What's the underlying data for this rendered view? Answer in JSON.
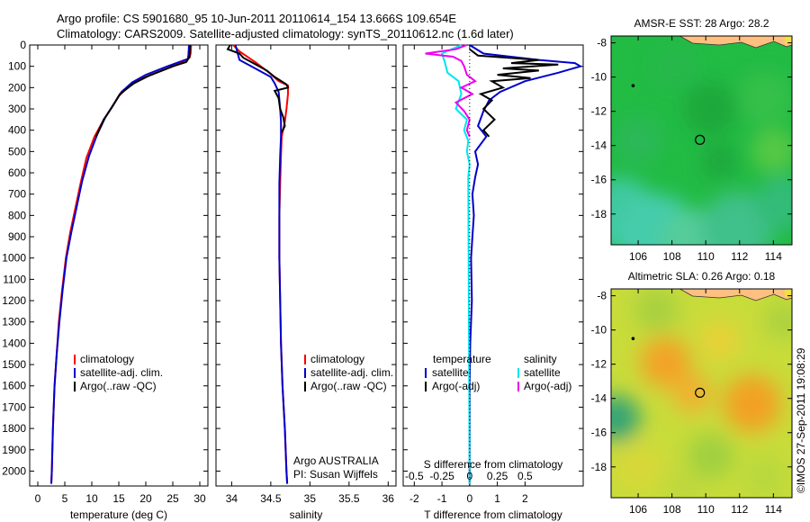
{
  "header": {
    "line1": "Argo profile: CS 5901680_95 10-Jun-2011 20110614_154 13.666S 109.654E",
    "line2": "Climatology: CARS2009. Satellite-adjusted climatology: synTS_20110612.nc (1.6d later)"
  },
  "credit": "©IMOS 27-Sep-2011 19:08:29",
  "colors": {
    "red": "#ff0000",
    "blue": "#0000cc",
    "black": "#000000",
    "cyan": "#00e5ee",
    "magenta": "#ee00ee",
    "land": "#ffbf80"
  },
  "chart_data": [
    {
      "type": "line",
      "id": "temperature",
      "xlabel": "temperature (deg C)",
      "xlim": [
        -1.5,
        31.5
      ],
      "xticks": [
        0,
        5,
        10,
        15,
        20,
        25,
        30
      ],
      "ylim": [
        0,
        2070
      ],
      "yticks": [
        0,
        100,
        200,
        300,
        400,
        500,
        600,
        700,
        800,
        900,
        1000,
        1100,
        1200,
        1300,
        1400,
        1500,
        1600,
        1700,
        1800,
        1900,
        2000
      ],
      "legend": [
        "climatology",
        "satellite-adj. clim.",
        "Argo(..raw -QC)"
      ],
      "series": [
        {
          "name": "climatology",
          "color": "red",
          "points": [
            [
              28.4,
              0
            ],
            [
              28.3,
              40
            ],
            [
              28.1,
              60
            ],
            [
              26,
              90
            ],
            [
              22,
              130
            ],
            [
              19,
              160
            ],
            [
              17,
              190
            ],
            [
              15,
              240
            ],
            [
              13.5,
              300
            ],
            [
              12,
              360
            ],
            [
              10.5,
              430
            ],
            [
              9,
              530
            ],
            [
              8,
              640
            ],
            [
              7,
              760
            ],
            [
              6,
              880
            ],
            [
              5.2,
              1000
            ],
            [
              4.5,
              1150
            ],
            [
              3.9,
              1300
            ],
            [
              3.5,
              1450
            ],
            [
              3.1,
              1600
            ],
            [
              2.8,
              1800
            ],
            [
              2.6,
              2000
            ],
            [
              2.5,
              2060
            ]
          ]
        },
        {
          "name": "satellite-adj. clim.",
          "color": "blue",
          "points": [
            [
              28,
              0
            ],
            [
              27.9,
              45
            ],
            [
              27.8,
              65
            ],
            [
              24,
              100
            ],
            [
              20,
              140
            ],
            [
              17.5,
              175
            ],
            [
              15.5,
              220
            ],
            [
              14,
              280
            ],
            [
              12.5,
              340
            ],
            [
              11,
              420
            ],
            [
              9.5,
              520
            ],
            [
              8.2,
              640
            ],
            [
              7.2,
              760
            ],
            [
              6.2,
              880
            ],
            [
              5.3,
              1000
            ],
            [
              4.6,
              1150
            ],
            [
              4,
              1300
            ],
            [
              3.5,
              1450
            ],
            [
              3.1,
              1600
            ],
            [
              2.8,
              1800
            ],
            [
              2.6,
              2000
            ],
            [
              2.5,
              2060
            ]
          ]
        },
        {
          "name": "Argo(..raw -QC)",
          "color": "black",
          "points": [
            [
              28.2,
              0
            ],
            [
              28.1,
              55
            ],
            [
              27.5,
              80
            ],
            [
              25,
              100
            ],
            [
              20.5,
              145
            ],
            [
              17.8,
              180
            ],
            [
              15.2,
              230
            ],
            [
              13.8,
              290
            ],
            [
              12.2,
              350
            ],
            [
              10.8,
              430
            ]
          ]
        }
      ]
    },
    {
      "type": "line",
      "id": "salinity",
      "xlabel": "salinity",
      "xlim": [
        33.8,
        36.1
      ],
      "xticks": [
        34,
        34.5,
        35,
        35.5,
        36
      ],
      "ylim": [
        0,
        2070
      ],
      "legend": [
        "climatology",
        "satellite-adj. clim.",
        "Argo(..raw -QC)"
      ],
      "annotation": [
        "Argo AUSTRALIA",
        "PI: Susan Wijffels"
      ],
      "series": [
        {
          "name": "climatology",
          "color": "red",
          "points": [
            [
              34.02,
              0
            ],
            [
              34.1,
              30
            ],
            [
              34.3,
              80
            ],
            [
              34.48,
              130
            ],
            [
              34.6,
              170
            ],
            [
              34.72,
              190
            ],
            [
              34.72,
              230
            ],
            [
              34.7,
              300
            ],
            [
              34.68,
              360
            ],
            [
              34.64,
              430
            ],
            [
              34.63,
              520
            ],
            [
              34.62,
              650
            ],
            [
              34.61,
              800
            ],
            [
              34.61,
              1000
            ],
            [
              34.62,
              1200
            ],
            [
              34.63,
              1400
            ],
            [
              34.65,
              1600
            ],
            [
              34.68,
              1800
            ],
            [
              34.7,
              2000
            ],
            [
              34.71,
              2060
            ]
          ]
        },
        {
          "name": "satellite-adj. clim.",
          "color": "blue",
          "points": [
            [
              34.05,
              0
            ],
            [
              34.07,
              30
            ],
            [
              34.1,
              70
            ],
            [
              34.3,
              110
            ],
            [
              34.5,
              150
            ],
            [
              34.55,
              180
            ],
            [
              34.6,
              220
            ],
            [
              34.62,
              300
            ],
            [
              34.63,
              360
            ],
            [
              34.63,
              430
            ],
            [
              34.62,
              520
            ],
            [
              34.61,
              650
            ],
            [
              34.61,
              800
            ],
            [
              34.61,
              1000
            ],
            [
              34.62,
              1200
            ],
            [
              34.63,
              1400
            ],
            [
              34.65,
              1600
            ],
            [
              34.68,
              1800
            ],
            [
              34.7,
              2000
            ],
            [
              34.71,
              2060
            ]
          ]
        },
        {
          "name": "Argo(..raw -QC)",
          "color": "black",
          "points": [
            [
              33.98,
              0
            ],
            [
              33.95,
              20
            ],
            [
              34.1,
              40
            ],
            [
              34.15,
              60
            ],
            [
              34.3,
              90
            ],
            [
              34.45,
              120
            ],
            [
              34.55,
              150
            ],
            [
              34.7,
              185
            ],
            [
              34.72,
              200
            ],
            [
              34.55,
              215
            ],
            [
              34.6,
              250
            ],
            [
              34.62,
              300
            ],
            [
              34.66,
              340
            ],
            [
              34.68,
              380
            ],
            [
              34.64,
              410
            ]
          ]
        }
      ]
    },
    {
      "type": "line",
      "id": "difference",
      "xlabel": "T difference from climatology",
      "xlabel_top": "S difference from climatology",
      "xlim": [
        -2.4,
        4.1
      ],
      "xticks": [
        -2,
        -1,
        0,
        1,
        2
      ],
      "xticks_s_labels": [
        "-0.5",
        "-0.25",
        "0",
        "0.25",
        "0.5"
      ],
      "xticks_s_pos": [
        -2,
        -1,
        0,
        1,
        2
      ],
      "ylim": [
        0,
        2070
      ],
      "legend_t_title": "temperature",
      "legend_s_title": "salinity",
      "legend_t": [
        "satellite",
        "Argo(-adj)"
      ],
      "legend_s": [
        "satellite",
        "Argo(-adj)"
      ],
      "series": [
        {
          "name": "T satellite",
          "color": "blue",
          "points": [
            [
              0,
              0
            ],
            [
              0.5,
              40
            ],
            [
              2.5,
              70
            ],
            [
              3.8,
              85
            ],
            [
              4.0,
              100
            ],
            [
              3.2,
              130
            ],
            [
              2,
              170
            ],
            [
              1.1,
              220
            ],
            [
              0.7,
              260
            ],
            [
              0.5,
              310
            ],
            [
              0.3,
              380
            ],
            [
              0.6,
              430
            ],
            [
              0.2,
              500
            ],
            [
              0.3,
              560
            ],
            [
              0.2,
              620
            ],
            [
              0.1,
              700
            ],
            [
              0.15,
              800
            ],
            [
              0.1,
              900
            ],
            [
              0.05,
              1000
            ],
            [
              0.08,
              1200
            ],
            [
              0.02,
              1400
            ],
            [
              0,
              1600
            ],
            [
              0,
              2060
            ]
          ]
        },
        {
          "name": "T Argo(-adj)",
          "color": "black",
          "points": [
            [
              0,
              20
            ],
            [
              0.3,
              50
            ],
            [
              2.5,
              70
            ],
            [
              1.5,
              85
            ],
            [
              3.2,
              92
            ],
            [
              1.2,
              110
            ],
            [
              2.5,
              120
            ],
            [
              1.0,
              140
            ],
            [
              2.2,
              155
            ],
            [
              0.8,
              170
            ],
            [
              1.2,
              200
            ],
            [
              0.4,
              230
            ],
            [
              0.8,
              260
            ],
            [
              0.5,
              300
            ],
            [
              0.9,
              350
            ],
            [
              0.5,
              400
            ],
            [
              0.7,
              430
            ]
          ]
        },
        {
          "name": "S satellite",
          "color": "cyan",
          "points": [
            [
              -0.3,
              0
            ],
            [
              -1.0,
              40
            ],
            [
              -0.9,
              80
            ],
            [
              -0.8,
              130
            ],
            [
              -0.4,
              170
            ],
            [
              -0.3,
              230
            ],
            [
              -0.5,
              300
            ],
            [
              -0.1,
              350
            ],
            [
              -0.2,
              400
            ],
            [
              -0.05,
              450
            ],
            [
              -0.1,
              500
            ],
            [
              0,
              560
            ],
            [
              -0.05,
              620
            ],
            [
              0,
              2060
            ]
          ]
        },
        {
          "name": "S Argo(-adj)",
          "color": "magenta",
          "points": [
            [
              -0.1,
              0
            ],
            [
              -0.5,
              20
            ],
            [
              -1.6,
              40
            ],
            [
              -0.6,
              55
            ],
            [
              -0.3,
              75
            ],
            [
              -0.2,
              100
            ],
            [
              -0.1,
              140
            ],
            [
              0.2,
              170
            ],
            [
              -0.3,
              200
            ],
            [
              0.1,
              230
            ],
            [
              -0.5,
              270
            ],
            [
              -0.2,
              310
            ],
            [
              0,
              350
            ],
            [
              -0.1,
              400
            ],
            [
              0,
              430
            ]
          ]
        }
      ]
    },
    {
      "type": "heatmap",
      "id": "sst_map",
      "title": "AMSR-E SST: 28 Argo: 28.2",
      "xlim": [
        104.4,
        115.1
      ],
      "ylim": [
        -19.8,
        -7.6
      ],
      "xticks": [
        106,
        108,
        110,
        112,
        114
      ],
      "yticks": [
        -8,
        -10,
        -12,
        -14,
        -16,
        -18
      ],
      "argo": [
        109.654,
        -13.666
      ],
      "dot": [
        105.7,
        -10.5
      ]
    },
    {
      "type": "heatmap",
      "id": "sla_map",
      "title": "Altimetric SLA: 0.26 Argo: 0.18",
      "xlim": [
        104.4,
        115.1
      ],
      "ylim": [
        -19.8,
        -7.6
      ],
      "xticks": [
        106,
        108,
        110,
        112,
        114
      ],
      "yticks": [
        -8,
        -10,
        -12,
        -14,
        -16,
        -18
      ],
      "argo": [
        109.654,
        -13.666
      ],
      "dot": [
        105.7,
        -10.5
      ]
    }
  ]
}
